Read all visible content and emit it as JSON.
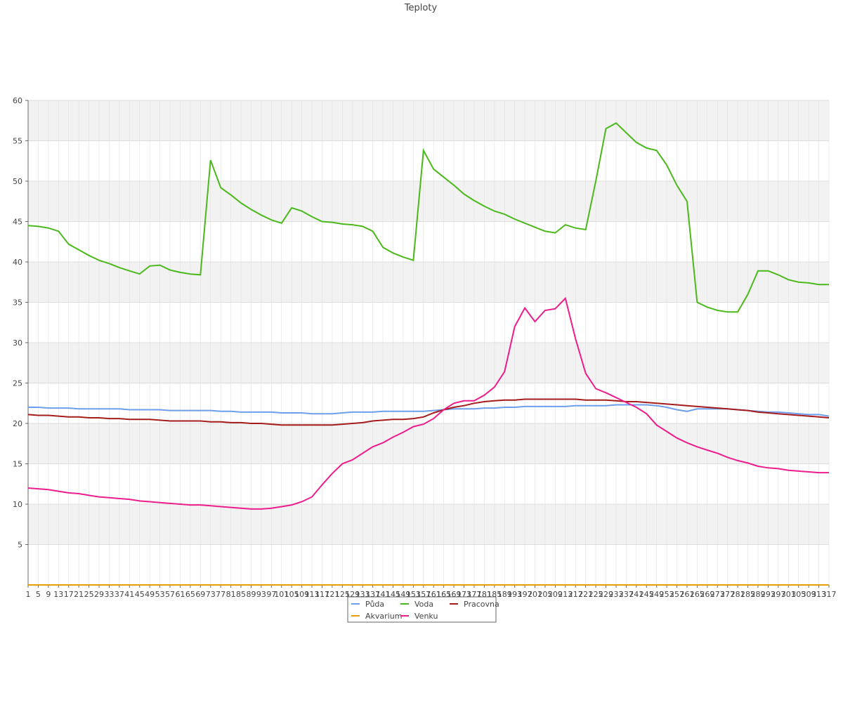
{
  "chart_data": {
    "type": "line",
    "title": "Teploty",
    "categories": [
      "1",
      "5",
      "9",
      "13",
      "17",
      "21",
      "25",
      "29",
      "33",
      "37",
      "41",
      "45",
      "49",
      "53",
      "57",
      "61",
      "65",
      "69",
      "73",
      "77",
      "81",
      "85",
      "89",
      "93",
      "97",
      "101",
      "105",
      "109",
      "113",
      "117",
      "121",
      "125",
      "129",
      "133",
      "137",
      "141",
      "145",
      "149",
      "153",
      "157",
      "161",
      "165",
      "169",
      "173",
      "177",
      "181",
      "185",
      "189",
      "193",
      "197",
      "201",
      "205",
      "209",
      "213",
      "217",
      "221",
      "225",
      "229",
      "233",
      "237",
      "241",
      "245",
      "249",
      "253",
      "257",
      "261",
      "265",
      "269",
      "273",
      "277",
      "281",
      "285",
      "289",
      "293",
      "297",
      "301",
      "305",
      "309",
      "313",
      "317"
    ],
    "series": [
      {
        "name": "Půda",
        "color": "#6d9eeb",
        "values": [
          22.0,
          22.0,
          21.9,
          21.9,
          21.9,
          21.8,
          21.8,
          21.8,
          21.8,
          21.8,
          21.7,
          21.7,
          21.7,
          21.7,
          21.6,
          21.6,
          21.6,
          21.6,
          21.6,
          21.5,
          21.5,
          21.4,
          21.4,
          21.4,
          21.4,
          21.3,
          21.3,
          21.3,
          21.2,
          21.2,
          21.2,
          21.3,
          21.4,
          21.4,
          21.4,
          21.5,
          21.5,
          21.5,
          21.5,
          21.5,
          21.6,
          21.7,
          21.8,
          21.8,
          21.8,
          21.9,
          21.9,
          22.0,
          22.0,
          22.1,
          22.1,
          22.1,
          22.1,
          22.1,
          22.2,
          22.2,
          22.2,
          22.2,
          22.3,
          22.3,
          22.3,
          22.3,
          22.2,
          22.0,
          21.7,
          21.5,
          21.8,
          21.8,
          21.8,
          21.8,
          21.7,
          21.6,
          21.5,
          21.4,
          21.4,
          21.3,
          21.2,
          21.1,
          21.1,
          20.9
        ]
      },
      {
        "name": "Voda",
        "color": "#4bb81b",
        "values": [
          44.5,
          44.4,
          44.2,
          43.8,
          42.2,
          41.5,
          40.8,
          40.2,
          39.8,
          39.3,
          38.9,
          38.5,
          39.5,
          39.6,
          39.0,
          38.7,
          38.5,
          38.4,
          52.6,
          49.2,
          48.3,
          47.3,
          46.5,
          45.8,
          45.2,
          44.8,
          46.7,
          46.3,
          45.6,
          45.0,
          44.9,
          44.7,
          44.6,
          44.4,
          43.8,
          41.8,
          41.1,
          40.6,
          40.2,
          53.8,
          51.5,
          50.5,
          49.5,
          48.4,
          47.6,
          46.9,
          46.3,
          45.9,
          45.3,
          44.8,
          44.3,
          43.8,
          43.6,
          44.6,
          44.2,
          44.0,
          50.0,
          56.5,
          57.2,
          56.0,
          54.8,
          54.1,
          53.8,
          52.0,
          49.5,
          47.5,
          35.0,
          34.4,
          34.0,
          33.8,
          33.8,
          36.0,
          38.9,
          38.9,
          38.4,
          37.8,
          37.5,
          37.4,
          37.2,
          37.2
        ]
      },
      {
        "name": "Pracovna",
        "color": "#a61c1c",
        "values": [
          21.1,
          21.0,
          21.0,
          20.9,
          20.8,
          20.8,
          20.7,
          20.7,
          20.6,
          20.6,
          20.5,
          20.5,
          20.5,
          20.4,
          20.3,
          20.3,
          20.3,
          20.3,
          20.2,
          20.2,
          20.1,
          20.1,
          20.0,
          20.0,
          19.9,
          19.8,
          19.8,
          19.8,
          19.8,
          19.8,
          19.8,
          19.9,
          20.0,
          20.1,
          20.3,
          20.4,
          20.5,
          20.5,
          20.6,
          20.8,
          21.3,
          21.7,
          22.0,
          22.2,
          22.5,
          22.7,
          22.8,
          22.9,
          22.9,
          23.0,
          23.0,
          23.0,
          23.0,
          23.0,
          23.0,
          22.9,
          22.9,
          22.9,
          22.8,
          22.7,
          22.7,
          22.6,
          22.5,
          22.4,
          22.3,
          22.2,
          22.1,
          22.0,
          21.9,
          21.8,
          21.7,
          21.6,
          21.4,
          21.3,
          21.2,
          21.1,
          21.0,
          20.9,
          20.8,
          20.7
        ]
      },
      {
        "name": "Akvarium",
        "color": "#e69f00",
        "values": [
          0,
          0,
          0,
          0,
          0,
          0,
          0,
          0,
          0,
          0,
          0,
          0,
          0,
          0,
          0,
          0,
          0,
          0,
          0,
          0,
          0,
          0,
          0,
          0,
          0,
          0,
          0,
          0,
          0,
          0,
          0,
          0,
          0,
          0,
          0,
          0,
          0,
          0,
          0,
          0,
          0,
          0,
          0,
          0,
          0,
          0,
          0,
          0,
          0,
          0,
          0,
          0,
          0,
          0,
          0,
          0,
          0,
          0,
          0,
          0,
          0,
          0,
          0,
          0,
          0,
          0,
          0,
          0,
          0,
          0,
          0,
          0,
          0,
          0,
          0,
          0,
          0,
          0,
          0,
          0
        ]
      },
      {
        "name": "Venku",
        "color": "#ee1c8c",
        "values": [
          12.0,
          11.9,
          11.8,
          11.6,
          11.4,
          11.3,
          11.1,
          10.9,
          10.8,
          10.7,
          10.6,
          10.4,
          10.3,
          10.2,
          10.1,
          10.0,
          9.9,
          9.9,
          9.8,
          9.7,
          9.6,
          9.5,
          9.4,
          9.4,
          9.5,
          9.7,
          9.9,
          10.3,
          10.9,
          12.4,
          13.8,
          15.0,
          15.5,
          16.3,
          17.1,
          17.6,
          18.3,
          18.9,
          19.6,
          19.9,
          20.6,
          21.7,
          22.5,
          22.8,
          22.8,
          23.5,
          24.5,
          26.4,
          32.0,
          34.3,
          32.6,
          34.0,
          34.2,
          35.5,
          30.5,
          26.2,
          24.3,
          23.8,
          23.2,
          22.6,
          22.0,
          21.2,
          19.8,
          19.0,
          18.2,
          17.6,
          17.1,
          16.7,
          16.3,
          15.8,
          15.4,
          15.1,
          14.7,
          14.5,
          14.4,
          14.2,
          14.1,
          14.0,
          13.9,
          13.9
        ]
      }
    ],
    "ylim": [
      0,
      60
    ],
    "yticks": [
      5,
      10,
      15,
      20,
      25,
      30,
      35,
      40,
      45,
      50,
      55,
      60
    ],
    "grid": true
  }
}
